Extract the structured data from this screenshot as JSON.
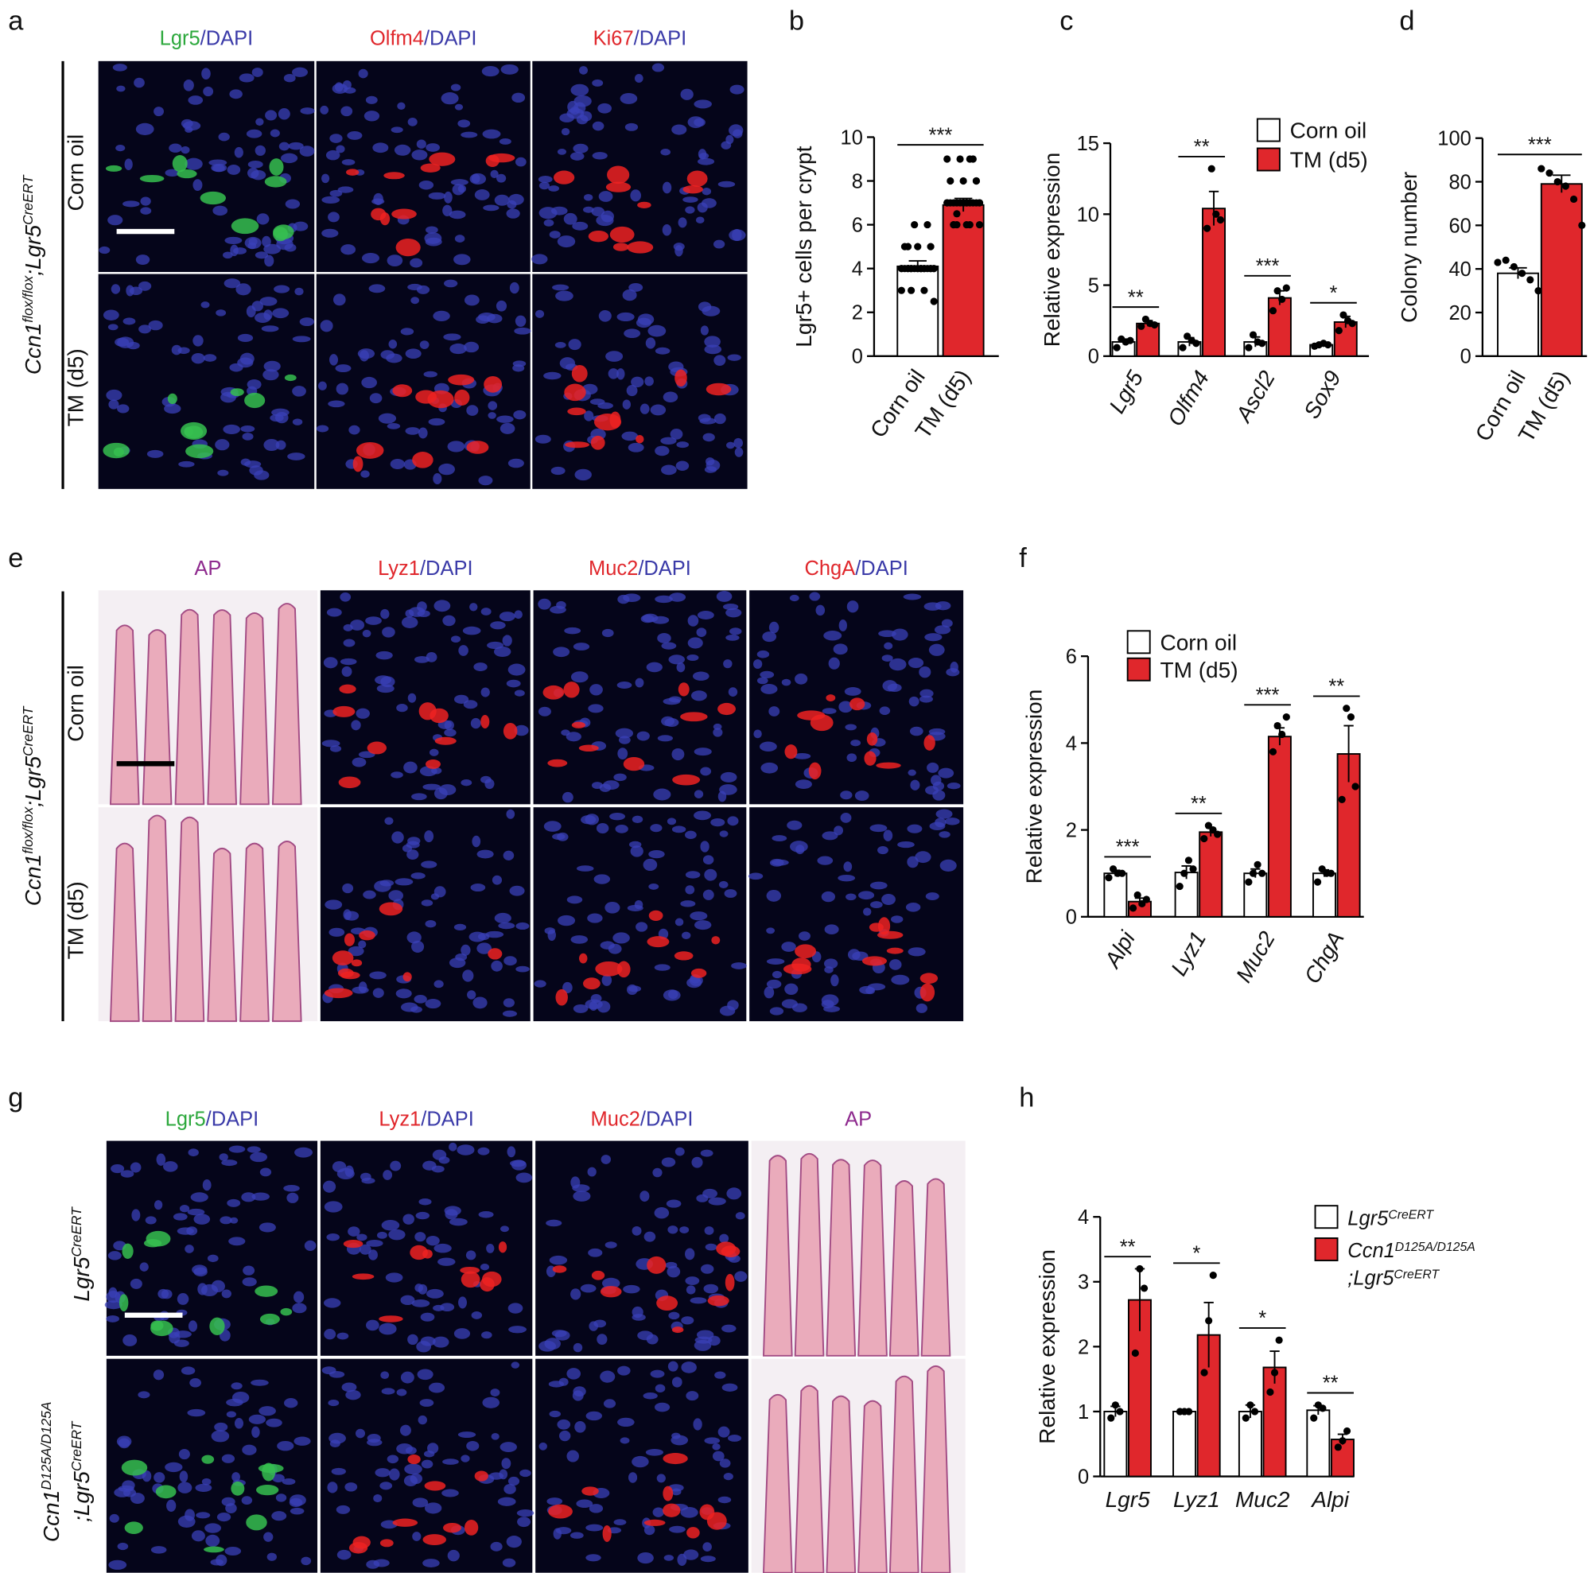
{
  "panel_letters": [
    "a",
    "b",
    "c",
    "d",
    "e",
    "f",
    "g",
    "h"
  ],
  "image_panels": [
    {
      "headers": [
        [
          [
            {
              "text": "Lgr5",
              "color": "#2ca83c"
            },
            {
              "text": "/DAPI",
              "color": "#3a3aa8"
            }
          ]
        ],
        [
          [
            {
              "text": "Olfm4",
              "color": "#e0272c"
            },
            {
              "text": "/DAPI",
              "color": "#3a3aa8"
            }
          ]
        ],
        [
          [
            {
              "text": "Ki67",
              "color": "#e0272c"
            },
            {
              "text": "/DAPI",
              "color": "#3a3aa8"
            }
          ]
        ]
      ],
      "row_labels": [
        [
          [
            {
              "text": "Corn oil"
            }
          ]
        ],
        [
          [
            {
              "text": "TM (d5)"
            }
          ]
        ]
      ],
      "group_label": [
        [
          {
            "text": "Ccn1",
            "italic": true
          },
          {
            "text": "flox/flox",
            "italic": true,
            "sup": true
          },
          {
            "text": ";Lgr5",
            "italic": true
          },
          {
            "text": "CreERT",
            "italic": true,
            "sup": true
          }
        ]
      ]
    },
    {
      "headers": [
        [
          [
            {
              "text": "AP",
              "color": "#8e2a8e"
            }
          ]
        ],
        [
          [
            {
              "text": "Lyz1",
              "color": "#e0272c"
            },
            {
              "text": "/DAPI",
              "color": "#3a3aa8"
            }
          ]
        ],
        [
          [
            {
              "text": "Muc2",
              "color": "#e0272c"
            },
            {
              "text": "/DAPI",
              "color": "#3a3aa8"
            }
          ]
        ],
        [
          [
            {
              "text": "ChgA",
              "color": "#e0272c"
            },
            {
              "text": "/DAPI",
              "color": "#3a3aa8"
            }
          ]
        ]
      ],
      "row_labels": [
        [
          [
            {
              "text": "Corn oil"
            }
          ]
        ],
        [
          [
            {
              "text": "TM (d5)"
            }
          ]
        ]
      ],
      "group_label": [
        [
          {
            "text": "Ccn1",
            "italic": true
          },
          {
            "text": "flox/flox",
            "italic": true,
            "sup": true
          },
          {
            "text": ";Lgr5",
            "italic": true
          },
          {
            "text": "CreERT",
            "italic": true,
            "sup": true
          }
        ]
      ]
    },
    {
      "headers": [
        [
          [
            {
              "text": "Lgr5",
              "color": "#2ca83c"
            },
            {
              "text": "/DAPI",
              "color": "#3a3aa8"
            }
          ]
        ],
        [
          [
            {
              "text": "Lyz1",
              "color": "#e0272c"
            },
            {
              "text": "/DAPI",
              "color": "#3a3aa8"
            }
          ]
        ],
        [
          [
            {
              "text": "Muc2",
              "color": "#e0272c"
            },
            {
              "text": "/DAPI",
              "color": "#3a3aa8"
            }
          ]
        ],
        [
          [
            {
              "text": "AP",
              "color": "#8e2a8e"
            }
          ]
        ]
      ],
      "row_labels": [
        [
          [
            {
              "text": "Lgr5",
              "italic": true
            },
            {
              "text": "CreERT",
              "italic": true,
              "sup": true
            }
          ]
        ],
        [
          [
            {
              "text": "Ccn1",
              "italic": true
            },
            {
              "text": "D125A/D125A",
              "italic": true,
              "sup": true
            }
          ],
          [
            {
              "text": ";Lgr5",
              "italic": true
            },
            {
              "text": "CreERT",
              "italic": true,
              "sup": true
            }
          ]
        ]
      ]
    }
  ],
  "chart_data": [
    {
      "type": "bar",
      "y_label": "Lgr5+ cells per crypt",
      "categories": [
        "Corn oil",
        "TM (d5)"
      ],
      "colors": [
        "#ffffff",
        "#e0272c"
      ],
      "values": [
        4.1,
        6.9
      ],
      "errors": [
        0.25,
        0.3
      ],
      "points": [
        [
          4,
          4,
          4,
          4,
          4,
          4,
          4,
          4,
          4,
          4,
          4,
          4,
          4,
          4,
          4,
          4,
          5,
          5,
          5,
          5,
          6,
          6,
          3,
          3,
          3,
          2.5,
          4,
          4,
          4,
          4
        ],
        [
          7,
          7,
          7,
          7,
          7,
          7,
          7,
          7,
          7,
          7,
          7,
          7,
          6,
          6,
          6,
          6,
          6,
          8,
          8,
          8,
          9,
          9,
          9,
          9,
          6.5,
          7,
          7,
          6,
          8,
          7
        ]
      ],
      "significance": "***",
      "ylim": [
        0,
        10
      ],
      "yticks": [
        0,
        2,
        4,
        6,
        8,
        10
      ]
    },
    {
      "type": "grouped-bar",
      "y_label": "Relative expression",
      "categories": [
        "Lgr5",
        "Olfm4",
        "Ascl2",
        "Sox9"
      ],
      "series": [
        {
          "name": "Corn oil",
          "color": "#ffffff",
          "values": [
            1.0,
            1.0,
            1.0,
            0.8
          ],
          "errors": [
            0.2,
            0.3,
            0.35,
            0.1
          ],
          "points": [
            [
              0.6,
              1.2,
              1.0,
              1.1
            ],
            [
              0.6,
              1.4,
              1.1,
              0.9
            ],
            [
              0.6,
              1.5,
              1.0,
              0.9
            ],
            [
              0.7,
              0.8,
              0.9,
              0.8
            ]
          ]
        },
        {
          "name": "TM (d5)",
          "color": "#e0272c",
          "values": [
            2.3,
            10.4,
            4.1,
            2.4
          ],
          "errors": [
            0.2,
            1.2,
            0.5,
            0.4
          ],
          "points": [
            [
              2.1,
              2.6,
              2.3,
              2.2
            ],
            [
              9.0,
              13.2,
              10.0,
              9.6
            ],
            [
              3.2,
              4.6,
              4.0,
              4.8
            ],
            [
              1.8,
              2.9,
              2.5,
              2.3
            ]
          ]
        }
      ],
      "significance": [
        "**",
        "**",
        "***",
        "*"
      ],
      "ylim": [
        0,
        15
      ],
      "yticks": [
        0,
        5,
        10,
        15
      ]
    },
    {
      "type": "bar",
      "y_label": "Colony number",
      "categories": [
        "Corn oil",
        "TM (d5)"
      ],
      "colors": [
        "#ffffff",
        "#e0272c"
      ],
      "values": [
        38,
        79
      ],
      "errors": [
        2.5,
        4
      ],
      "points": [
        [
          43,
          44,
          41,
          38,
          35,
          30
        ],
        [
          86,
          84,
          80,
          78,
          72,
          60
        ]
      ],
      "significance": "***",
      "ylim": [
        0,
        100
      ],
      "yticks": [
        0,
        20,
        40,
        60,
        80,
        100
      ]
    },
    {
      "type": "grouped-bar",
      "y_label": "Relative expression",
      "categories": [
        "Alpi",
        "Lyz1",
        "Muc2",
        "ChgA"
      ],
      "series": [
        {
          "name": "Corn oil",
          "color": "#ffffff",
          "values": [
            1.0,
            1.02,
            1.0,
            1.0
          ],
          "errors": [
            0.07,
            0.15,
            0.1,
            0.08
          ],
          "points": [
            [
              0.9,
              1.1,
              1.0,
              1.0
            ],
            [
              0.7,
              1.0,
              1.3,
              1.1
            ],
            [
              0.8,
              1.0,
              1.2,
              1.0
            ],
            [
              0.8,
              1.1,
              1.0,
              1.0
            ]
          ]
        },
        {
          "name": "TM (d5)",
          "color": "#e0272c",
          "values": [
            0.35,
            1.95,
            4.15,
            3.75
          ],
          "errors": [
            0.08,
            0.1,
            0.2,
            0.65
          ],
          "points": [
            [
              0.2,
              0.5,
              0.3,
              0.4
            ],
            [
              1.8,
              2.1,
              2.0,
              1.9
            ],
            [
              3.8,
              4.4,
              4.2,
              4.6
            ],
            [
              2.7,
              4.8,
              4.6,
              3.0
            ]
          ]
        }
      ],
      "significance": [
        "***",
        "**",
        "***",
        "**"
      ],
      "ylim": [
        0,
        6
      ],
      "yticks": [
        0,
        2,
        4,
        6
      ]
    },
    {
      "type": "grouped-bar",
      "y_label": "Relative expression",
      "categories": [
        "Lgr5",
        "Lyz1",
        "Muc2",
        "Alpi"
      ],
      "series": [
        {
          "name": [
            [
              {
                "text": "Lgr5",
                "italic": true
              },
              {
                "text": "CreERT",
                "italic": true,
                "sup": true
              }
            ]
          ],
          "color": "#ffffff",
          "values": [
            1.0,
            1.0,
            1.0,
            1.02
          ],
          "errors": [
            0.08,
            0,
            0.1,
            0.07
          ],
          "points": [
            [
              0.9,
              1.1,
              1.0
            ],
            [
              1.0,
              1.0,
              1.0
            ],
            [
              0.9,
              1.1,
              1.0
            ],
            [
              0.9,
              1.1,
              1.05
            ]
          ]
        },
        {
          "name": [
            [
              {
                "text": "Ccn1",
                "italic": true
              },
              {
                "text": "D125A/D125A",
                "italic": true,
                "sup": true
              }
            ],
            [
              {
                "text": ";Lgr5",
                "italic": true
              },
              {
                "text": "CreERT",
                "italic": true,
                "sup": true
              }
            ]
          ],
          "color": "#e0272c",
          "values": [
            2.72,
            2.18,
            1.68,
            0.57
          ],
          "errors": [
            0.48,
            0.5,
            0.25,
            0.08
          ],
          "points": [
            [
              1.9,
              3.2,
              2.9
            ],
            [
              1.6,
              2.4,
              3.1
            ],
            [
              1.3,
              1.6,
              2.1
            ],
            [
              0.45,
              0.55,
              0.7
            ]
          ]
        }
      ],
      "significance": [
        "**",
        "*",
        "*",
        "**"
      ],
      "ylim": [
        0,
        4
      ],
      "yticks": [
        0,
        1,
        2,
        3,
        4
      ]
    }
  ]
}
